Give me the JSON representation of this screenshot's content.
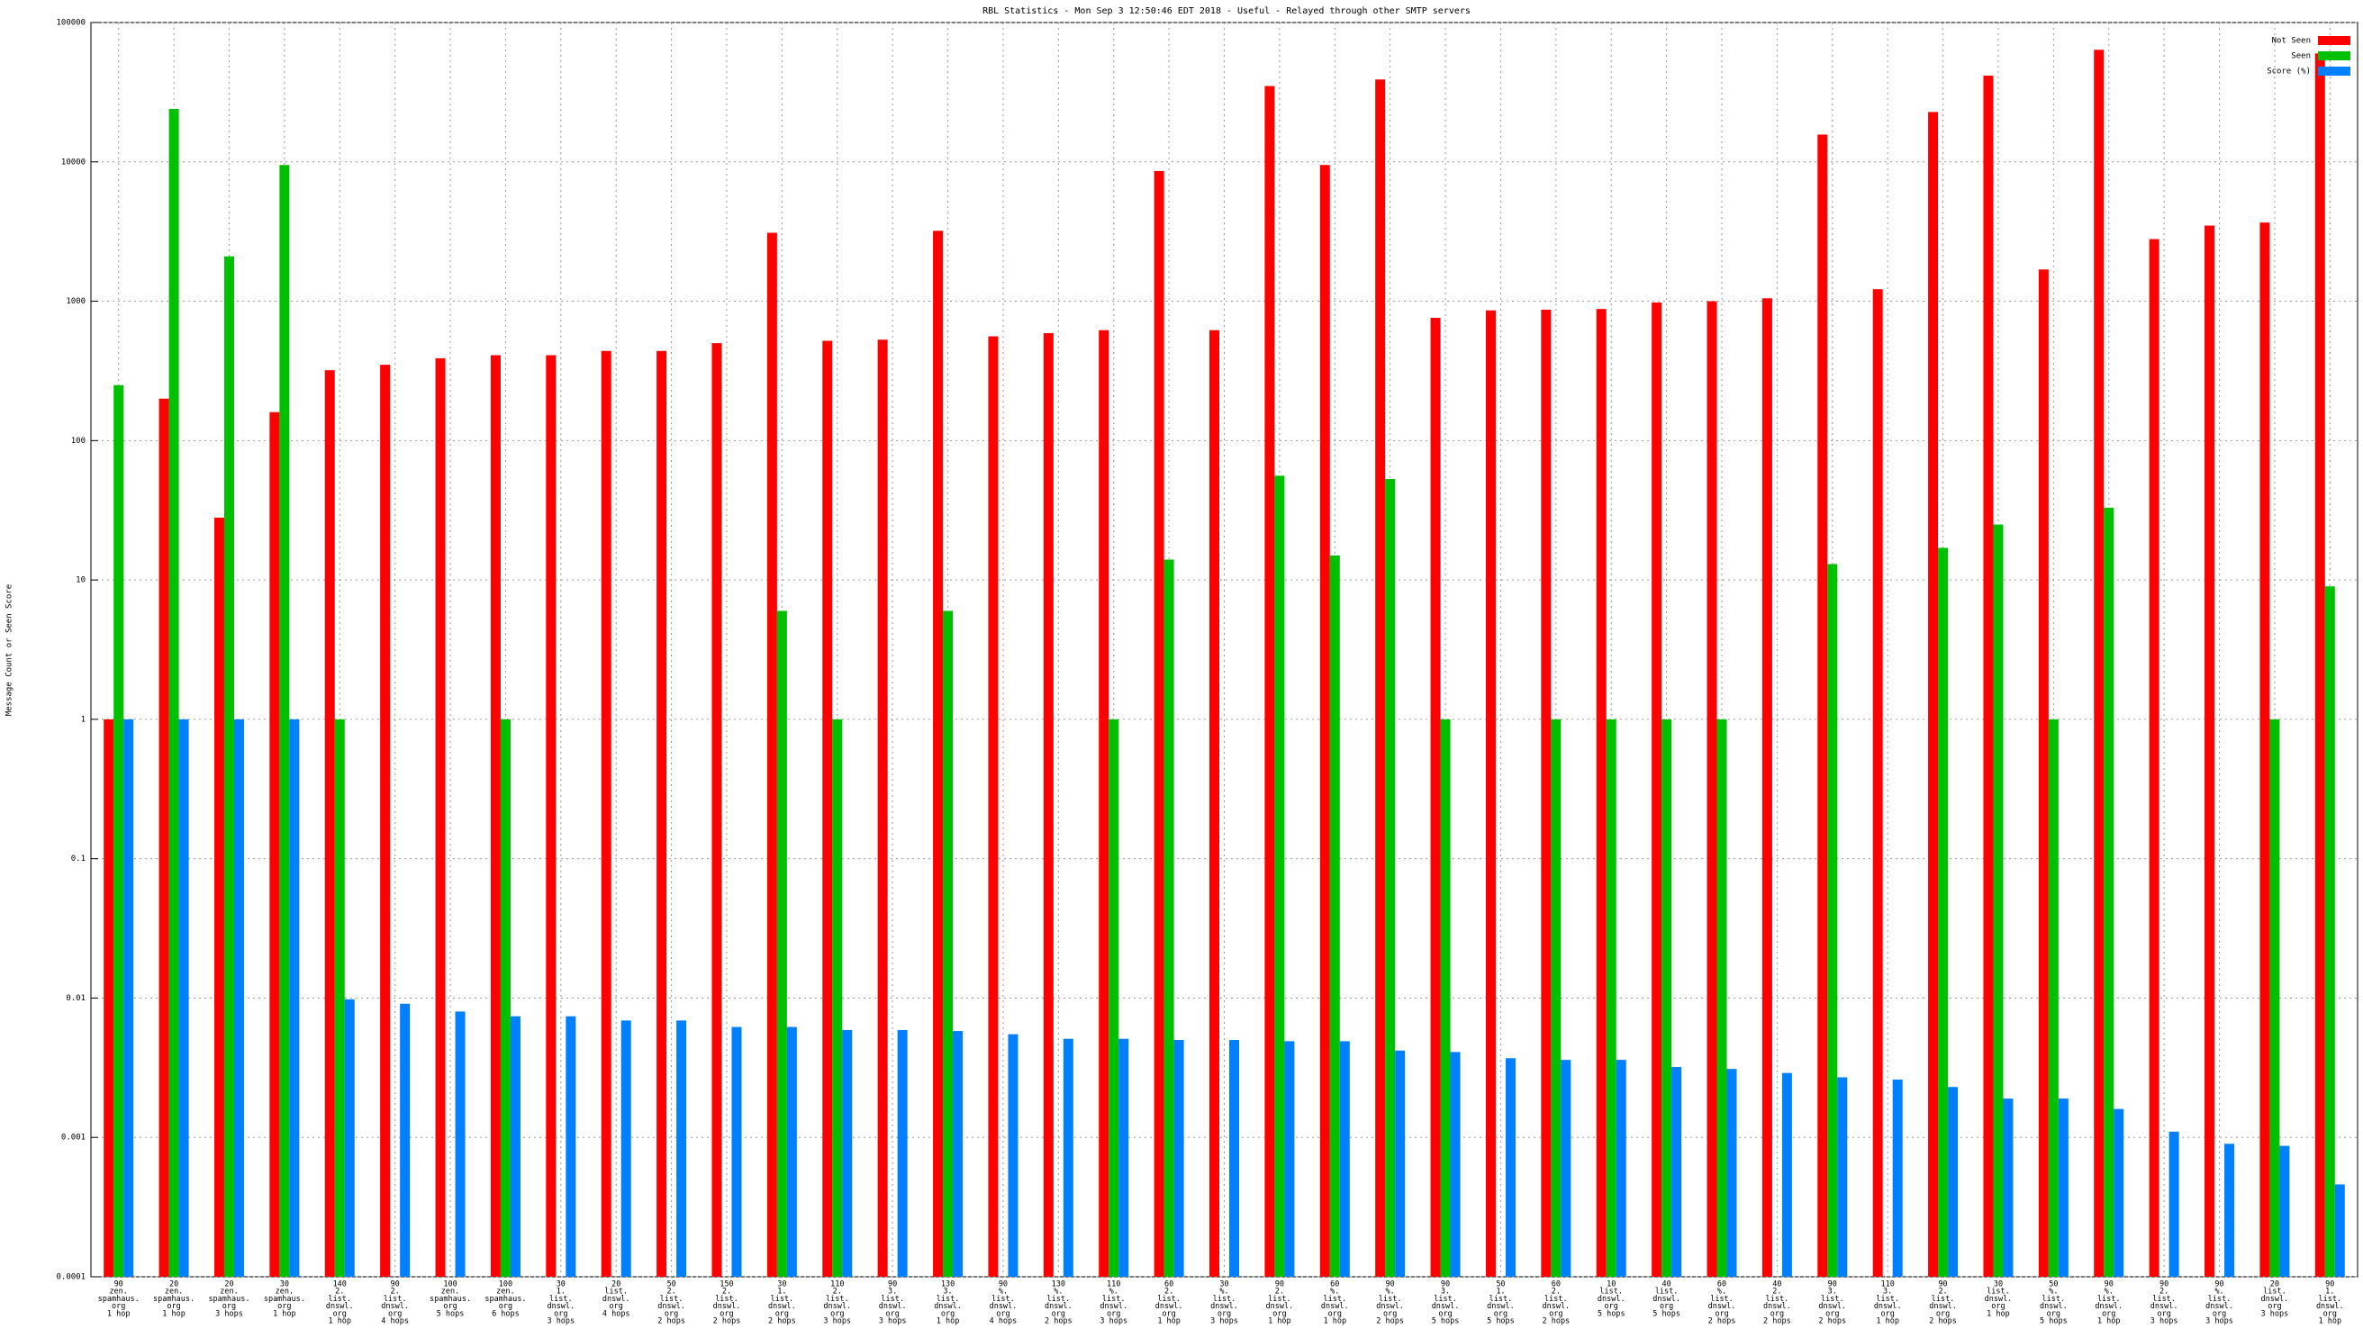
{
  "chart_data": {
    "type": "bar",
    "title": "RBL Statistics - Mon Sep  3 12:50:46 EDT 2018 - Useful - Relayed through other SMTP servers",
    "y_label": "Message Count or Seen Score",
    "yscale": "log",
    "ylim": [
      0.0001,
      100000
    ],
    "yticks": [
      0.0001,
      0.001,
      0.01,
      0.1,
      1,
      10,
      100,
      1000,
      10000,
      100000
    ],
    "grid": true,
    "legend": "upper right",
    "categories": [
      [
        "90",
        "zen.",
        "spamhaus.",
        "org",
        "1 hop"
      ],
      [
        "20",
        "zen.",
        "spamhaus.",
        "org",
        "1 hop"
      ],
      [
        "20",
        "zen.",
        "spamhaus.",
        "org",
        "3 hops"
      ],
      [
        "30",
        "zen.",
        "spamhaus.",
        "org",
        "1 hop"
      ],
      [
        "140",
        "2.",
        "list.",
        "dnswl.",
        "org",
        "1 hop"
      ],
      [
        "90",
        "2.",
        "list.",
        "dnswl.",
        "org",
        "4 hops"
      ],
      [
        "100",
        "zen.",
        "spamhaus.",
        "org",
        "5 hops"
      ],
      [
        "100",
        "zen.",
        "spamhaus.",
        "org",
        "6 hops"
      ],
      [
        "30",
        "1.",
        "list.",
        "dnswl.",
        "org",
        "3 hops"
      ],
      [
        "20",
        "list.",
        "dnswl.",
        "org",
        "4 hops"
      ],
      [
        "50",
        "2.",
        "list.",
        "dnswl.",
        "org",
        "2 hops"
      ],
      [
        "150",
        "2.",
        "list.",
        "dnswl.",
        "org",
        "2 hops"
      ],
      [
        "30",
        "1.",
        "list.",
        "dnswl.",
        "org",
        "2 hops"
      ],
      [
        "110",
        "2.",
        "list.",
        "dnswl.",
        "org",
        "3 hops"
      ],
      [
        "90",
        "3.",
        "list.",
        "dnswl.",
        "org",
        "3 hops"
      ],
      [
        "130",
        "3.",
        "list.",
        "dnswl.",
        "org",
        "1 hop"
      ],
      [
        "90",
        "%.",
        "list.",
        "dnswl.",
        "org",
        "4 hops"
      ],
      [
        "130",
        "%.",
        "list.",
        "dnswl.",
        "org",
        "2 hops"
      ],
      [
        "110",
        "%.",
        "list.",
        "dnswl.",
        "org",
        "3 hops"
      ],
      [
        "60",
        "2.",
        "list.",
        "dnswl.",
        "org",
        "1 hop"
      ],
      [
        "30",
        "%.",
        "list.",
        "dnswl.",
        "org",
        "3 hops"
      ],
      [
        "90",
        "2.",
        "list.",
        "dnswl.",
        "org",
        "1 hop"
      ],
      [
        "60",
        "%.",
        "list.",
        "dnswl.",
        "org",
        "1 hop"
      ],
      [
        "90",
        "%.",
        "list.",
        "dnswl.",
        "org",
        "2 hops"
      ],
      [
        "90",
        "3.",
        "list.",
        "dnswl.",
        "org",
        "5 hops"
      ],
      [
        "50",
        "1.",
        "list.",
        "dnswl.",
        "org",
        "5 hops"
      ],
      [
        "60",
        "2.",
        "list.",
        "dnswl.",
        "org",
        "2 hops"
      ],
      [
        "10",
        "list.",
        "dnswl.",
        "org",
        "5 hops"
      ],
      [
        "40",
        "list.",
        "dnswl.",
        "org",
        "5 hops"
      ],
      [
        "60",
        "%.",
        "list.",
        "dnswl.",
        "org",
        "2 hops"
      ],
      [
        "40",
        "2.",
        "list.",
        "dnswl.",
        "org",
        "2 hops"
      ],
      [
        "90",
        "3.",
        "list.",
        "dnswl.",
        "org",
        "2 hops"
      ],
      [
        "110",
        "3.",
        "list.",
        "dnswl.",
        "org",
        "1 hop"
      ],
      [
        "90",
        "2.",
        "list.",
        "dnswl.",
        "org",
        "2 hops"
      ],
      [
        "30",
        "list.",
        "dnswl.",
        "org",
        "1 hop"
      ],
      [
        "50",
        "%.",
        "list.",
        "dnswl.",
        "org",
        "5 hops"
      ],
      [
        "90",
        "%.",
        "list.",
        "dnswl.",
        "org",
        "1 hop"
      ],
      [
        "90",
        "2.",
        "list.",
        "dnswl.",
        "org",
        "3 hops"
      ],
      [
        "90",
        "%.",
        "list.",
        "dnswl.",
        "org",
        "3 hops"
      ],
      [
        "20",
        "list.",
        "dnswl.",
        "org",
        "3 hops"
      ],
      [
        "90",
        "1.",
        "list.",
        "dnswl.",
        "org",
        "1 hop"
      ]
    ],
    "series": [
      {
        "name": "Not Seen",
        "color": "#ff0000",
        "values": [
          1,
          200,
          28,
          160,
          320,
          350,
          390,
          410,
          410,
          440,
          440,
          500,
          3100,
          520,
          530,
          3200,
          560,
          590,
          620,
          8600,
          620,
          35000,
          9500,
          39000,
          760,
          860,
          870,
          880,
          980,
          1000,
          1050,
          15700,
          1220,
          22800,
          41600,
          1690,
          63700,
          2790,
          3490,
          3670,
          60000
        ]
      },
      {
        "name": "Seen",
        "color": "#00c000",
        "values": [
          250,
          24000,
          2100,
          9500,
          1,
          null,
          null,
          1,
          null,
          null,
          null,
          null,
          6,
          1,
          null,
          6,
          null,
          null,
          1,
          14,
          null,
          56,
          15,
          53,
          1,
          null,
          1,
          1,
          1,
          1,
          null,
          13,
          null,
          17,
          25,
          1,
          33,
          null,
          null,
          1,
          9
        ]
      },
      {
        "name": "Score (%)",
        "color": "#0080ff",
        "values": [
          1,
          1,
          1,
          1,
          0.0098,
          0.0091,
          0.008,
          0.0074,
          0.0074,
          0.0069,
          0.0069,
          0.0062,
          0.0062,
          0.0059,
          0.0059,
          0.0058,
          0.0055,
          0.0051,
          0.0051,
          0.005,
          0.005,
          0.0049,
          0.0049,
          0.0042,
          0.0041,
          0.0037,
          0.0036,
          0.0036,
          0.0032,
          0.0031,
          0.0029,
          0.0027,
          0.0026,
          0.0023,
          0.0019,
          0.0019,
          0.0016,
          0.0011,
          0.0009,
          0.00087,
          0.00046
        ]
      }
    ]
  }
}
